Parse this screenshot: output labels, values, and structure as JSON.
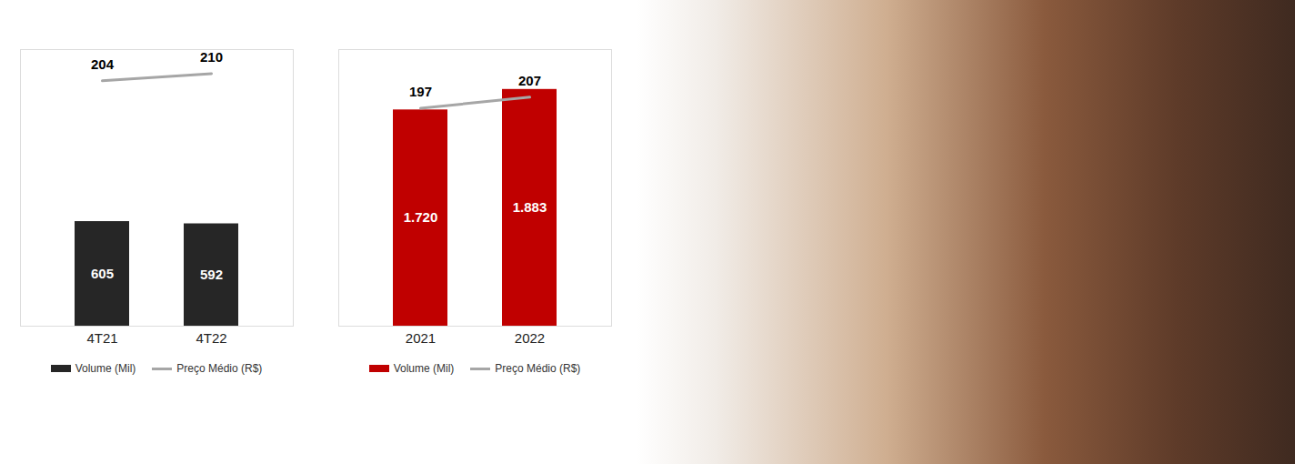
{
  "chart_data": [
    {
      "type": "bar",
      "categories": [
        "4T21",
        "4T22"
      ],
      "series": [
        {
          "name": "Volume (Mil)",
          "type": "bar",
          "color": "#262626",
          "values": [
            605,
            592
          ]
        },
        {
          "name": "Preço Médio (R$)",
          "type": "line",
          "axis": "y2",
          "color": "#a6a6a6",
          "values": [
            204,
            210
          ]
        }
      ],
      "ylim": [
        0,
        1600
      ],
      "y2lim": [
        0,
        230
      ],
      "data_labels": true,
      "tick_labels": "x",
      "legend": "bottom"
    },
    {
      "type": "bar",
      "categories": [
        "2021",
        "2022"
      ],
      "series": [
        {
          "name": "Volume (Mil)",
          "type": "bar",
          "color": "#c00000",
          "values": [
            1720,
            1883
          ],
          "value_labels": [
            "1.720",
            "1.883"
          ]
        },
        {
          "name": "Preço Médio (R$)",
          "type": "line",
          "axis": "y2",
          "color": "#a6a6a6",
          "values": [
            197,
            207
          ]
        }
      ],
      "ylim": [
        0,
        2200
      ],
      "y2lim": [
        0,
        250
      ],
      "data_labels": true,
      "tick_labels": "x",
      "legend": "bottom"
    }
  ]
}
